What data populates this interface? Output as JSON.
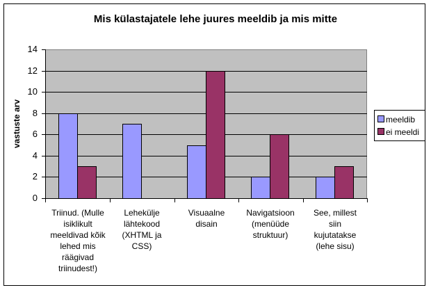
{
  "chart_data": {
    "type": "bar",
    "title": "Mis külastajatele lehe juures meeldib ja mis mitte",
    "xlabel": "",
    "ylabel": "vastuste arv",
    "ylim": [
      0,
      14
    ],
    "yticks": [
      0,
      2,
      4,
      6,
      8,
      10,
      12,
      14
    ],
    "grid": true,
    "legend_position": "right",
    "categories": [
      "Triinud. (Mulle isiklikult meeldivad kõik lehed mis räägivad triinudest!)",
      "Lehekülje lähtekood (XHTML ja CSS)",
      "Visuaalne disain",
      "Navigatsioon (menüüde struktuur)",
      "See, millest siin kujutatakse (lehe sisu)"
    ],
    "category_lines": [
      [
        "Triinud. (Mulle",
        "isiklikult",
        "meeldivad kõik",
        "lehed mis",
        "räägivad",
        "triinudest!)"
      ],
      [
        "Lehekülje",
        "lähtekood",
        "(XHTML ja",
        "CSS)"
      ],
      [
        "Visuaalne",
        "disain"
      ],
      [
        "Navigatsioon",
        "(menüüde",
        "struktuur)"
      ],
      [
        "See, millest",
        "siin",
        "kujutatakse",
        "(lehe sisu)"
      ]
    ],
    "series": [
      {
        "name": "meeldib",
        "color": "#9999ff",
        "values": [
          8,
          7,
          5,
          2,
          2
        ]
      },
      {
        "name": "ei meeldi",
        "color": "#993366",
        "values": [
          3,
          0,
          12,
          6,
          3
        ]
      }
    ]
  },
  "colors": {
    "plot_background": "#c0c0c0",
    "gridline": "#000000"
  }
}
